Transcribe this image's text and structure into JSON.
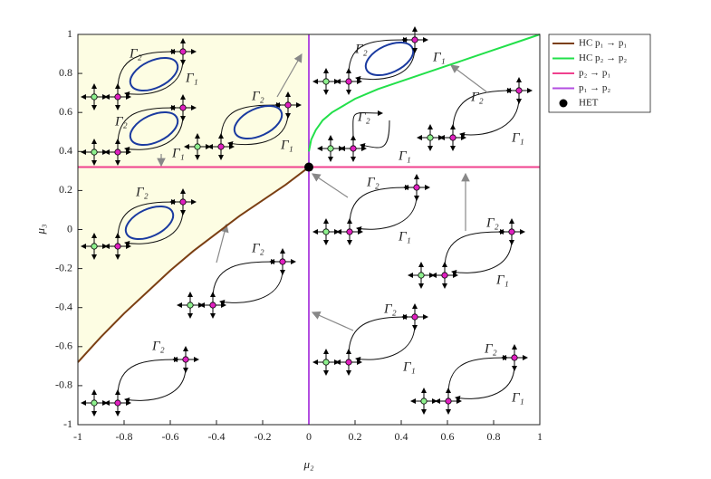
{
  "chart_data": {
    "type": "line",
    "xlabel": "μ₂",
    "ylabel": "μ₃",
    "xlim": [
      -1,
      1
    ],
    "ylim": [
      -1,
      1
    ],
    "xticks": [
      -1,
      -0.8,
      -0.6,
      -0.4,
      -0.2,
      0,
      0.2,
      0.4,
      0.6,
      0.8,
      1
    ],
    "yticks": [
      -1,
      -0.8,
      -0.6,
      -0.4,
      -0.2,
      0,
      0.2,
      0.4,
      0.6,
      0.8,
      1
    ],
    "legend": "outside-right",
    "series": [
      {
        "name": "HC p₁ → p₁",
        "color": "#7b3f13",
        "x": [
          -1,
          -0.9,
          -0.8,
          -0.7,
          -0.6,
          -0.5,
          -0.4,
          -0.3,
          -0.2,
          -0.1,
          0
        ],
        "values": [
          -0.68,
          -0.55,
          -0.43,
          -0.32,
          -0.21,
          -0.11,
          -0.02,
          0.07,
          0.15,
          0.23,
          0.32
        ]
      },
      {
        "name": "HC p₂ → p₂",
        "color": "#22e04a",
        "x": [
          0,
          0.01,
          0.03,
          0.06,
          0.1,
          0.2,
          0.3,
          0.4,
          0.5,
          0.6,
          0.7,
          0.8,
          0.9,
          1
        ],
        "values": [
          0.4,
          0.46,
          0.51,
          0.56,
          0.6,
          0.67,
          0.72,
          0.76,
          0.8,
          0.84,
          0.88,
          0.92,
          0.96,
          1
        ]
      },
      {
        "name": "p₂ → p₁",
        "color": "#f0418e",
        "x": [
          -1,
          1
        ],
        "values": [
          0.32,
          0.32
        ]
      },
      {
        "name": "p₁ → p₂",
        "color": "#b34ee0",
        "x": [
          0,
          0
        ],
        "values": [
          -1,
          1
        ]
      },
      {
        "name": "HET",
        "color": "#000000",
        "marker": true,
        "x": [
          0
        ],
        "values": [
          0.32
        ]
      }
    ],
    "annotations": [
      "Γ₂",
      "Γ₁",
      "Γ₂",
      "Γ₁",
      "Γ₂",
      "Γ₁",
      "Γ₂",
      "Γ₂",
      "Γ₂",
      "Γ₂",
      "Γ₁",
      "Γ₂",
      "Γ₁",
      "Γ₂",
      "Γ₁",
      "Γ₂",
      "Γ₁",
      "Γ₂",
      "Γ₁",
      "Γ₂",
      "Γ₁",
      "Γ₂",
      "Γ₁"
    ]
  }
}
